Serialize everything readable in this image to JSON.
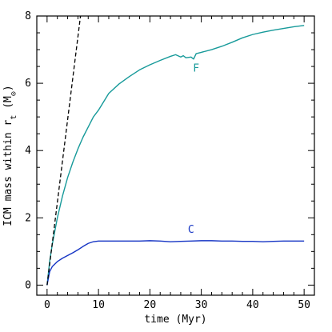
{
  "chart_data": {
    "type": "line",
    "xlabel": "time (Myr)",
    "ylabel_parts": {
      "main": "ICM mass within r",
      "sub": "t",
      "unit_open": " (M",
      "unit_symbol": "⊙",
      "unit_close": ")"
    },
    "xlim": [
      -2,
      52
    ],
    "ylim": [
      -0.3,
      8
    ],
    "xticks": [
      0,
      10,
      20,
      30,
      40,
      50
    ],
    "yticks": [
      0,
      2,
      4,
      6,
      8
    ],
    "series": [
      {
        "name": "F",
        "color": "#179a9a",
        "x": [
          0,
          0.5,
          1,
          2,
          3,
          4,
          5,
          6,
          7,
          8,
          9,
          10,
          11,
          12,
          14,
          16,
          18,
          20,
          22,
          24,
          25,
          26,
          26.5,
          27,
          28,
          28.5,
          29,
          30,
          32,
          34,
          36,
          38,
          40,
          42,
          44,
          46,
          48,
          50
        ],
        "y": [
          0,
          0.7,
          1.2,
          2.0,
          2.65,
          3.2,
          3.65,
          4.05,
          4.4,
          4.7,
          5.0,
          5.2,
          5.45,
          5.7,
          5.98,
          6.2,
          6.4,
          6.55,
          6.68,
          6.8,
          6.85,
          6.78,
          6.82,
          6.76,
          6.78,
          6.72,
          6.88,
          6.92,
          7.0,
          7.1,
          7.22,
          7.35,
          7.45,
          7.52,
          7.58,
          7.63,
          7.68,
          7.72
        ]
      },
      {
        "name": "C",
        "color": "#1534c4",
        "x": [
          0,
          0.5,
          1,
          2,
          3,
          4,
          5,
          6,
          7,
          8,
          9,
          10,
          12,
          14,
          16,
          18,
          20,
          22,
          24,
          26,
          28,
          30,
          32,
          34,
          36,
          38,
          40,
          42,
          44,
          46,
          48,
          50
        ],
        "y": [
          0,
          0.4,
          0.55,
          0.7,
          0.8,
          0.88,
          0.96,
          1.05,
          1.15,
          1.24,
          1.29,
          1.31,
          1.31,
          1.31,
          1.31,
          1.31,
          1.32,
          1.31,
          1.29,
          1.3,
          1.31,
          1.32,
          1.32,
          1.31,
          1.31,
          1.3,
          1.3,
          1.29,
          1.3,
          1.31,
          1.31,
          1.31
        ]
      },
      {
        "name": "",
        "color": "#000000",
        "dashed": true,
        "x": [
          0,
          6.5
        ],
        "y": [
          0,
          8
        ]
      }
    ],
    "annotations": [
      {
        "text": "F",
        "x": 29,
        "y": 6.35,
        "series": 0
      },
      {
        "text": "C",
        "x": 28,
        "y": 1.55,
        "series": 1
      }
    ]
  }
}
